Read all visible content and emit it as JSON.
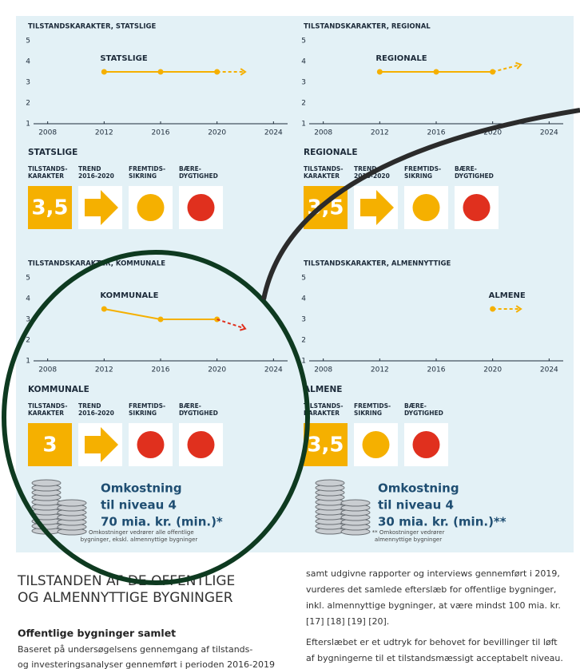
{
  "chart_data": [
    {
      "type": "line",
      "title": "TILSTANDSKARAKTER, STATSLIGE",
      "x": [
        2012,
        2016,
        2020,
        2022
      ],
      "xlim": [
        2007,
        2025
      ],
      "xticks": [
        2008,
        2012,
        2016,
        2020,
        2024
      ],
      "ylim": [
        1,
        5
      ],
      "yticks": [
        1,
        2,
        3,
        4,
        5
      ],
      "series": [
        {
          "name": "STATSLIGE",
          "color": "#f5b000",
          "values": [
            3.5,
            3.5,
            3.5,
            null
          ]
        },
        {
          "color": "#f5b000",
          "dashed": true,
          "values": [
            null,
            null,
            3.5,
            3.5
          ]
        }
      ]
    },
    {
      "type": "line",
      "title": "TILSTANDSKARAKTER, REGIONAL",
      "x": [
        2012,
        2016,
        2020,
        2022
      ],
      "xlim": [
        2007,
        2025
      ],
      "xticks": [
        2008,
        2012,
        2016,
        2020,
        2024
      ],
      "ylim": [
        1,
        5
      ],
      "yticks": [
        1,
        2,
        3,
        4,
        5
      ],
      "series": [
        {
          "name": "REGIONALE",
          "color": "#f5b000",
          "values": [
            3.5,
            3.5,
            3.5,
            null
          ]
        },
        {
          "color": "#f5b000",
          "dashed": true,
          "values": [
            null,
            null,
            3.5,
            3.85
          ]
        }
      ]
    },
    {
      "type": "line",
      "title": "TILSTANDSKARAKTER, KOMMUNALE",
      "x": [
        2012,
        2016,
        2020,
        2022
      ],
      "xlim": [
        2007,
        2025
      ],
      "xticks": [
        2008,
        2012,
        2016,
        2020,
        2024
      ],
      "ylim": [
        1,
        5
      ],
      "yticks": [
        1,
        2,
        3,
        4,
        5
      ],
      "series": [
        {
          "name": "KOMMUNALE",
          "color": "#f5b000",
          "values": [
            3.5,
            3,
            3,
            null
          ]
        },
        {
          "color": "#e0301e",
          "dashed": true,
          "values": [
            null,
            null,
            3,
            2.55
          ]
        }
      ]
    },
    {
      "type": "line",
      "title": "TILSTANDSKARAKTER, ALMENNYTTIGE",
      "x": [
        2012,
        2016,
        2020,
        2022
      ],
      "xlim": [
        2007,
        2025
      ],
      "xticks": [
        2008,
        2012,
        2016,
        2020,
        2024
      ],
      "ylim": [
        1,
        5
      ],
      "yticks": [
        1,
        2,
        3,
        4,
        5
      ],
      "series": [
        {
          "name": "ALMENE",
          "color": "#f5b000",
          "values": [
            null,
            null,
            3.5,
            null
          ]
        },
        {
          "color": "#f5b000",
          "dashed": true,
          "values": [
            null,
            null,
            3.5,
            3.5
          ]
        }
      ]
    }
  ],
  "panels": [
    {
      "heading": "STATSLIGE",
      "score": "3,5",
      "columns": [
        [
          "TILSTANDS-",
          "KARAKTER"
        ],
        [
          "TREND",
          "2016-2020"
        ],
        [
          "FREMTIDS-",
          "SIKRING"
        ],
        [
          "BÆRE-",
          "DYGTIGHED"
        ]
      ],
      "marks": [
        "score",
        "arrow",
        "#f5b000",
        "#e0301e"
      ]
    },
    {
      "heading": "REGIONALE",
      "score": "3,5",
      "columns": [
        [
          "TILSTANDS-",
          "KARAKTER"
        ],
        [
          "TREND",
          "2016-2020"
        ],
        [
          "FREMTIDS-",
          "SIKRING"
        ],
        [
          "BÆRE-",
          "DYGTIGHED"
        ]
      ],
      "marks": [
        "score",
        "arrow",
        "#f5b000",
        "#e0301e"
      ]
    },
    {
      "heading": "KOMMUNALE",
      "score": "3",
      "columns": [
        [
          "TILSTANDS-",
          "KARAKTER"
        ],
        [
          "TREND",
          "2016-2020"
        ],
        [
          "FREMTIDS-",
          "SIKRING"
        ],
        [
          "BÆRE-",
          "DYGTIGHED"
        ]
      ],
      "marks": [
        "score",
        "arrow",
        "#e0301e",
        "#e0301e"
      ]
    },
    {
      "heading": "ALMENE",
      "score": "3,5",
      "columns": [
        [
          "TILSTANDS-",
          "KARAKTER"
        ],
        [
          "FREMTIDS-",
          "SIKRING"
        ],
        [
          "BÆRE-",
          "DYGTIGHED"
        ]
      ],
      "marks": [
        "score",
        "#f5b000",
        "#e0301e"
      ]
    }
  ],
  "costs": [
    {
      "lines": [
        "Omkostning",
        "til niveau 4",
        "70 mia. kr. (min.)*"
      ],
      "note": [
        "* Omkostninger vedrører alle offentlige",
        "bygninger, ekskl. almennyttige bygninger"
      ]
    },
    {
      "lines": [
        "Omkostning",
        "til niveau 4",
        "30 mia. kr. (min.)**"
      ],
      "note": [
        "** Omkostninger vedrører",
        "almennyttige bygninger"
      ]
    }
  ],
  "article": {
    "title": [
      "TILSTANDEN AF DE OFFENTLIGE",
      "OG ALMENNYTTIGE BYGNINGER"
    ],
    "subheading": "Offentlige bygninger samlet",
    "left": [
      "Baseret på undersøgelsens gennemgang af tilstands-",
      "og investeringsanalyser gennemført i perioden 2016-2019"
    ],
    "right": [
      [
        "samt udgivne rapporter og interviews gennemført i 2019,",
        "vurderes det samlede efterslæb for offentlige bygninger,",
        "inkl. almennyttige bygninger, at være mindst 100 mia. kr.",
        "[17] [18] [19] [20]."
      ],
      [
        "Efterslæbet er et udtryk for behovet for bevillinger til løft",
        "af bygningerne til et tilstandsmæssigt acceptabelt niveau."
      ]
    ]
  }
}
